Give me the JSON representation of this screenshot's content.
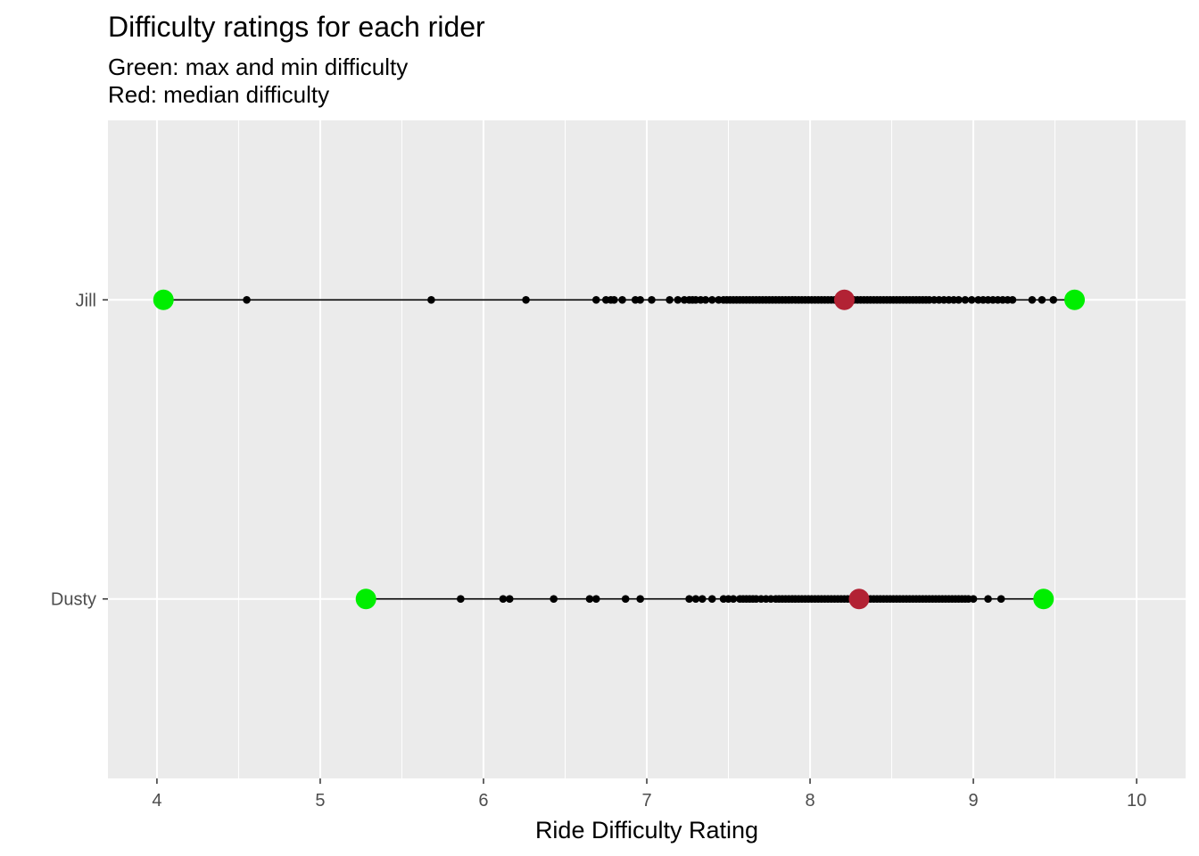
{
  "chart_data": {
    "type": "scatter",
    "title": "Difficulty ratings for each rider",
    "subtitle_lines": [
      "Green: max and min difficulty",
      "Red: median difficulty"
    ],
    "xlabel": "Ride Difficulty Rating",
    "ylabel": "",
    "xlim": [
      3.7,
      10.3
    ],
    "x_ticks": [
      4,
      5,
      6,
      7,
      8,
      9,
      10
    ],
    "x_tick_labels": [
      "4",
      "5",
      "6",
      "7",
      "8",
      "9",
      "10"
    ],
    "categories": [
      "Dusty",
      "Jill"
    ],
    "grid": true,
    "colors": {
      "panel_bg": "#ebebeb",
      "grid": "#ffffff",
      "points": "#000000",
      "min_max": "#00ee00",
      "median": "#b22234"
    },
    "series": [
      {
        "name": "Jill",
        "min": 4.04,
        "max": 9.62,
        "median": 8.21,
        "values": [
          4.55,
          5.68,
          6.26,
          6.69,
          6.75,
          6.78,
          6.8,
          6.85,
          6.93,
          6.96,
          7.03,
          7.14,
          7.19,
          7.23,
          7.26,
          7.28,
          7.3,
          7.33,
          7.36,
          7.4,
          7.44,
          7.47,
          7.49,
          7.51,
          7.53,
          7.55,
          7.57,
          7.59,
          7.61,
          7.63,
          7.65,
          7.67,
          7.69,
          7.71,
          7.73,
          7.75,
          7.77,
          7.79,
          7.81,
          7.83,
          7.85,
          7.87,
          7.89,
          7.91,
          7.93,
          7.95,
          7.97,
          7.99,
          8.01,
          8.03,
          8.05,
          8.07,
          8.09,
          8.11,
          8.13,
          8.15,
          8.17,
          8.19,
          8.23,
          8.25,
          8.27,
          8.29,
          8.31,
          8.33,
          8.35,
          8.37,
          8.39,
          8.41,
          8.43,
          8.45,
          8.47,
          8.49,
          8.51,
          8.53,
          8.55,
          8.57,
          8.59,
          8.61,
          8.63,
          8.65,
          8.67,
          8.69,
          8.71,
          8.73,
          8.76,
          8.79,
          8.82,
          8.85,
          8.88,
          8.91,
          8.95,
          8.99,
          9.03,
          9.06,
          9.09,
          9.12,
          9.15,
          9.18,
          9.21,
          9.24,
          9.36,
          9.42,
          9.49
        ]
      },
      {
        "name": "Dusty",
        "min": 5.28,
        "max": 9.43,
        "median": 8.3,
        "values": [
          5.86,
          6.12,
          6.16,
          6.43,
          6.65,
          6.69,
          6.87,
          6.96,
          7.26,
          7.3,
          7.34,
          7.4,
          7.47,
          7.5,
          7.53,
          7.57,
          7.59,
          7.61,
          7.63,
          7.65,
          7.67,
          7.7,
          7.73,
          7.76,
          7.79,
          7.81,
          7.83,
          7.85,
          7.87,
          7.89,
          7.91,
          7.93,
          7.95,
          7.97,
          7.99,
          8.01,
          8.03,
          8.05,
          8.07,
          8.09,
          8.11,
          8.13,
          8.15,
          8.17,
          8.19,
          8.21,
          8.23,
          8.25,
          8.27,
          8.33,
          8.35,
          8.37,
          8.39,
          8.41,
          8.43,
          8.45,
          8.47,
          8.49,
          8.51,
          8.53,
          8.55,
          8.57,
          8.59,
          8.61,
          8.63,
          8.65,
          8.67,
          8.69,
          8.71,
          8.73,
          8.75,
          8.77,
          8.79,
          8.81,
          8.83,
          8.85,
          8.87,
          8.89,
          8.91,
          8.93,
          8.95,
          8.97,
          9.0,
          9.09,
          9.17
        ]
      }
    ]
  }
}
